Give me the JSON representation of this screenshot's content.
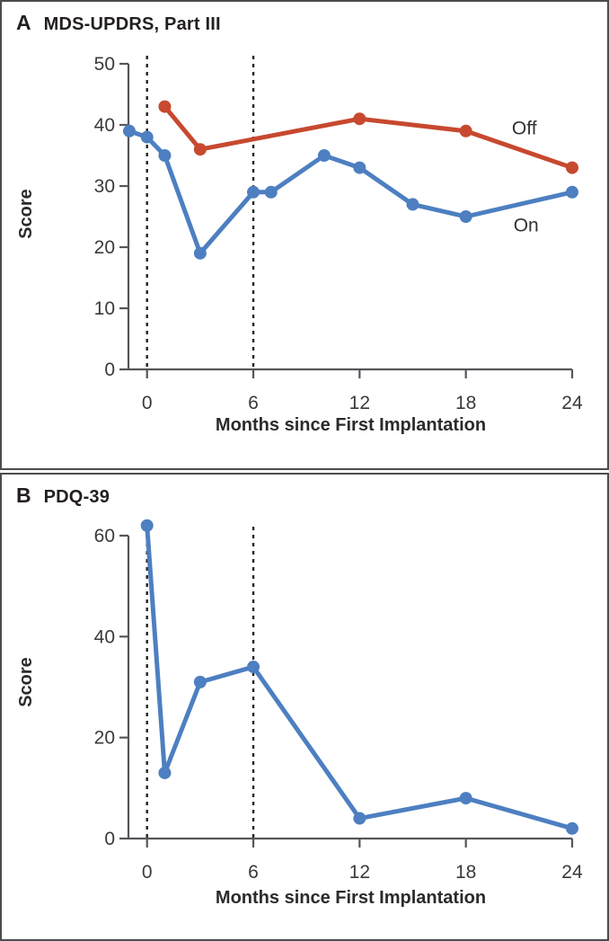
{
  "figure_xlabel": "Months since First Implantation",
  "colors": {
    "on_blue": "#4d7fc1",
    "off_red": "#c7492f",
    "axis": "#55565a",
    "dashed_line": "#232323",
    "text": "#2b2b2b"
  },
  "chart_data": [
    {
      "type": "line",
      "panel_label": "A",
      "title": "MDS-UPDRS, Part III",
      "xlabel": "Months since First Implantation",
      "ylabel": "Score",
      "xlim": [
        -1.1,
        24
      ],
      "ylim": [
        0,
        50
      ],
      "xticks": [
        0,
        6,
        12,
        18,
        24
      ],
      "yticks": [
        0,
        10,
        20,
        30,
        40,
        50
      ],
      "dashed_vlines_x": [
        0,
        6
      ],
      "grid": false,
      "legend": "inline-annotations",
      "series": [
        {
          "name": "Off",
          "color": "#c7492f",
          "x": [
            1,
            3,
            12,
            18,
            24
          ],
          "y": [
            43,
            36,
            41,
            39,
            33
          ],
          "label": {
            "text": "Off",
            "x": 21.3,
            "y": 39.5
          }
        },
        {
          "name": "On",
          "color": "#4d7fc1",
          "x": [
            -1,
            0,
            1,
            3,
            6,
            7,
            10,
            12,
            15,
            18,
            24
          ],
          "y": [
            39,
            38,
            35,
            19,
            29,
            29,
            35,
            33,
            27,
            25,
            29
          ],
          "label": {
            "text": "On",
            "x": 21.4,
            "y": 23.6
          }
        }
      ]
    },
    {
      "type": "line",
      "panel_label": "B",
      "title": "PDQ-39",
      "xlabel": "Months since First Implantation",
      "ylabel": "Score",
      "xlim": [
        -1.1,
        24
      ],
      "ylim": [
        0,
        62
      ],
      "xticks": [
        0,
        6,
        12,
        18,
        24
      ],
      "yticks": [
        0,
        20,
        40,
        60
      ],
      "dashed_vlines_x": [
        0,
        6
      ],
      "grid": false,
      "legend": "none",
      "series": [
        {
          "name": "On",
          "color": "#4d7fc1",
          "x": [
            0,
            1,
            3,
            6,
            12,
            18,
            24
          ],
          "y": [
            62,
            13,
            31,
            34,
            4,
            8,
            2
          ]
        }
      ]
    }
  ]
}
